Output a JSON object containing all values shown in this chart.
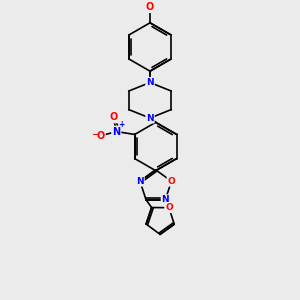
{
  "bg_color": "#ebebeb",
  "bond_color": "#000000",
  "N_color": "#0000ff",
  "O_color": "#ff0000",
  "lw": 1.2,
  "fs": 6.5,
  "figsize": [
    3.0,
    3.0
  ],
  "dpi": 100,
  "xlim": [
    -2.5,
    2.5
  ],
  "ylim": [
    -5.5,
    4.5
  ]
}
